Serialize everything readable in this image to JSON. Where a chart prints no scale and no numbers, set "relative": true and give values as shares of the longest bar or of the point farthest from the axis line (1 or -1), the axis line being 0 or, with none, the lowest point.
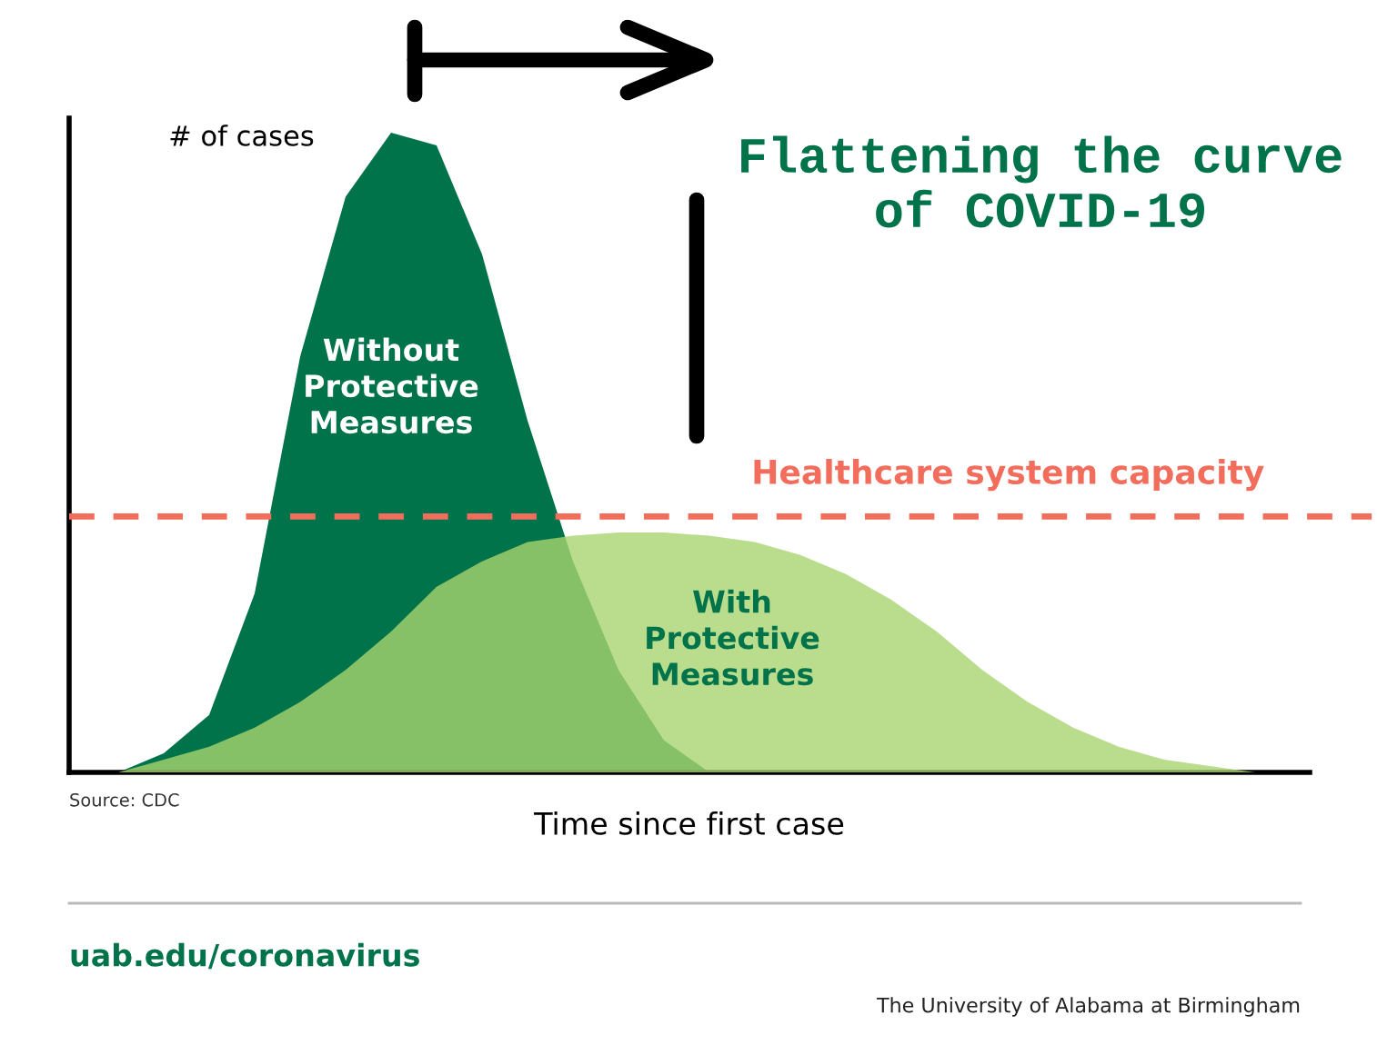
{
  "chart_data": {
    "type": "area",
    "relative": true,
    "title": "Flattening the curve of COVID-19",
    "ylabel": "# of cases",
    "xlabel": "Time since first case",
    "categories": [
      null,
      null,
      null,
      null,
      null,
      null,
      null,
      null,
      null,
      null,
      null,
      null,
      null,
      null,
      null,
      null,
      null,
      null,
      null,
      null,
      null,
      null,
      null,
      null,
      null,
      null
    ],
    "series": [
      {
        "name": "Without Protective Measures",
        "color": "#00734a",
        "values": [
          0,
          0.03,
          0.09,
          0.28,
          0.65,
          0.9,
          1,
          0.98,
          0.81,
          0.55,
          0.33,
          0.16,
          0.05,
          0,
          0,
          0,
          0,
          0,
          0,
          0,
          0,
          0,
          0,
          0,
          0,
          0
        ]
      },
      {
        "name": "With Protective Measures",
        "color": "#a8d46f",
        "values": [
          0,
          0.02,
          0.04,
          0.07,
          0.11,
          0.16,
          0.22,
          0.29,
          0.33,
          0.36,
          0.37,
          0.375,
          0.375,
          0.37,
          0.36,
          0.34,
          0.31,
          0.27,
          0.22,
          0.16,
          0.11,
          0.07,
          0.04,
          0.02,
          0.01,
          0
        ]
      }
    ],
    "ref_lines": [
      {
        "axis": "y",
        "value": 0.4,
        "label": "Healthcare system capacity",
        "color": "#f26d5b",
        "line_style": "dashed"
      }
    ],
    "annotations": [
      "Source: CDC",
      "uab.edu/coronavirus",
      "The University of Alabama at Birmingham"
    ],
    "grid": false,
    "legend": false
  }
}
